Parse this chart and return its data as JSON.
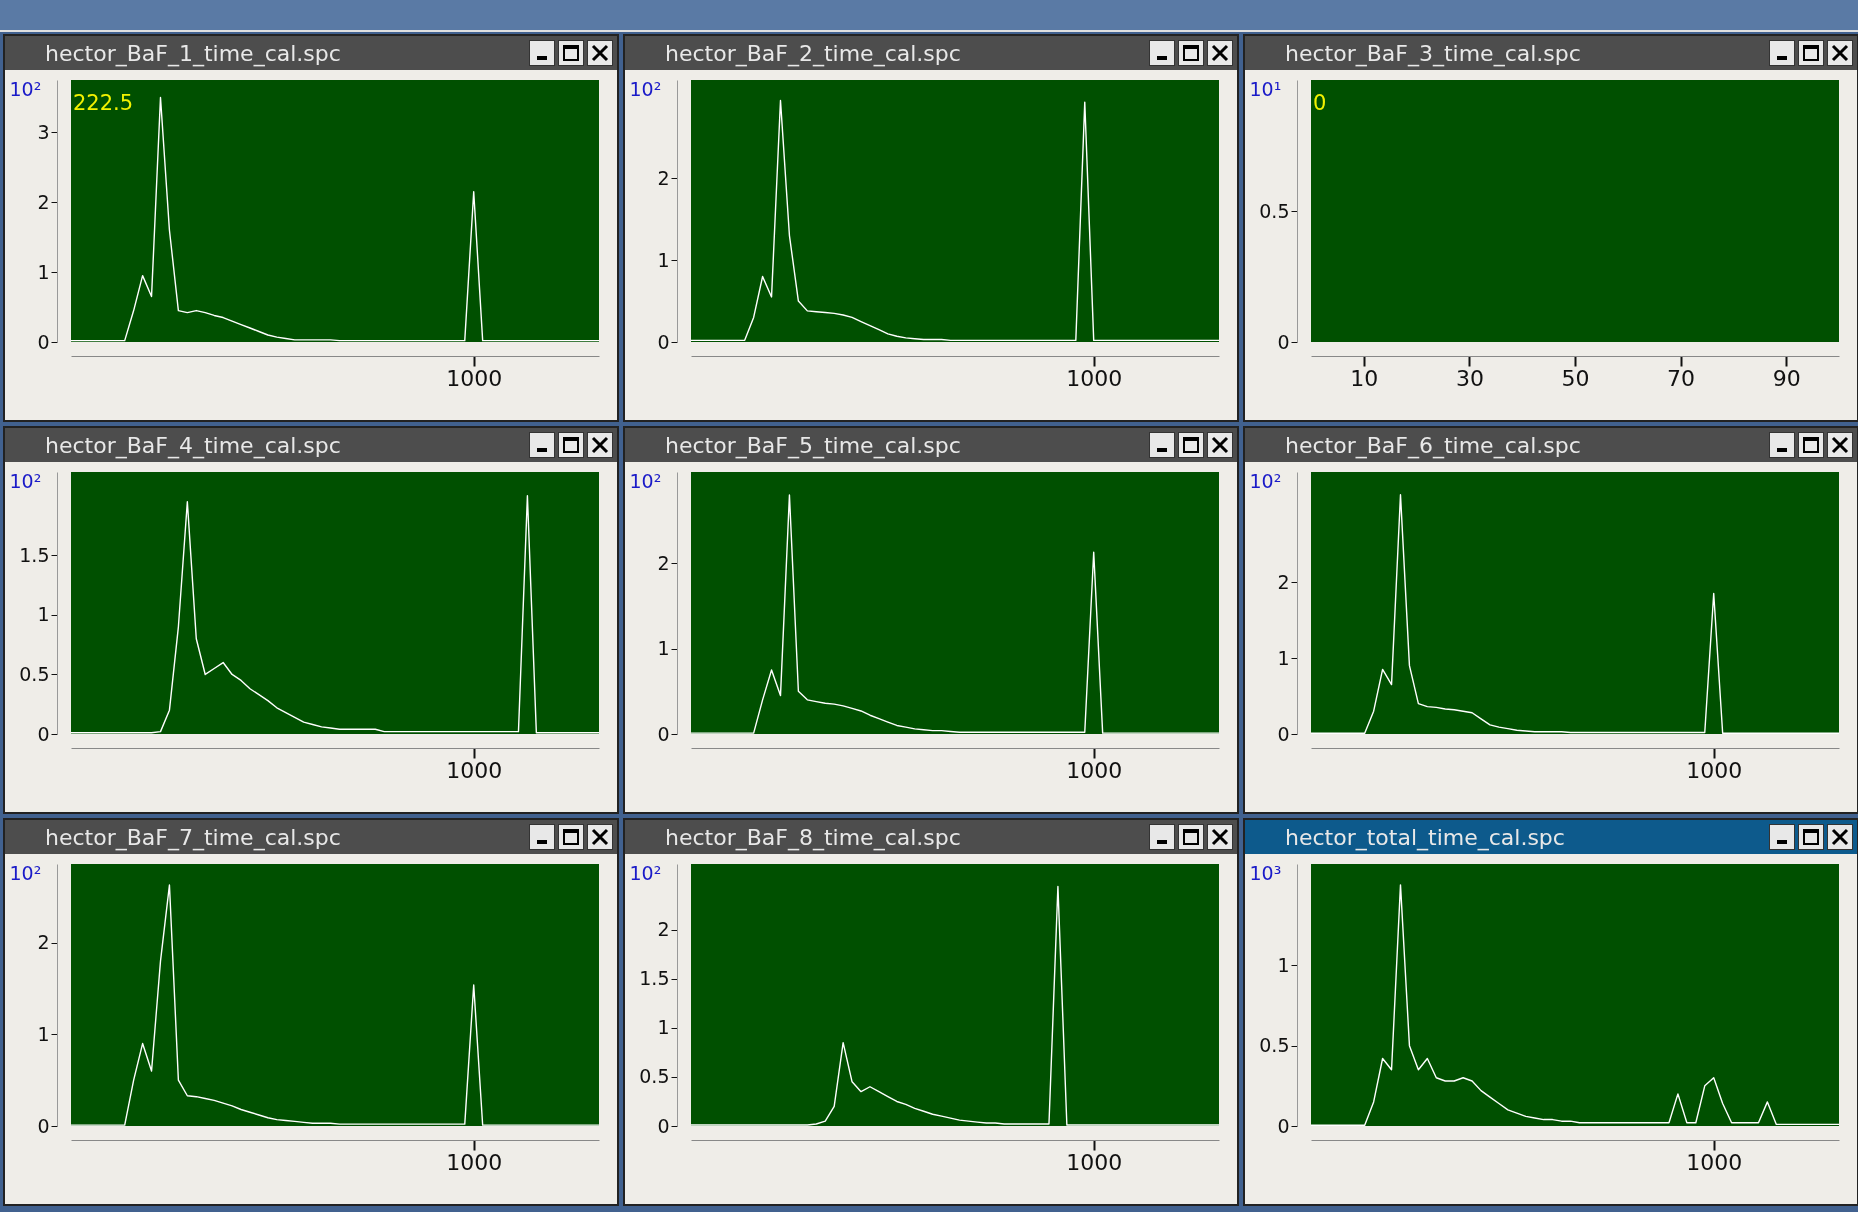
{
  "chart_data": [
    {
      "type": "line",
      "title": "hector_BaF_1_time_cal.spc",
      "ylabel": "10²",
      "annotations": [
        "222.5"
      ],
      "ylim": [
        0,
        3.75
      ],
      "yticks": [
        0,
        1,
        2,
        3
      ],
      "categories": [
        null,
        null,
        null,
        null,
        null,
        null,
        null,
        null,
        null,
        null,
        null,
        null,
        null,
        null,
        null,
        null,
        null,
        null,
        null,
        null,
        null,
        null,
        null,
        null,
        null,
        null,
        null,
        null,
        null,
        null,
        null,
        null,
        null,
        null,
        null,
        null,
        null,
        null,
        null,
        null,
        null,
        null,
        null,
        null,
        null,
        "1000",
        null,
        null,
        null,
        null,
        null,
        null,
        null,
        null,
        null,
        null,
        null,
        null,
        null,
        null
      ],
      "series": [
        {
          "color": "#ffffff",
          "values": [
            0.02,
            0.02,
            0.02,
            0.02,
            0.02,
            0.02,
            0.02,
            0.45,
            0.95,
            0.65,
            3.5,
            1.6,
            0.45,
            0.42,
            0.45,
            0.42,
            0.38,
            0.35,
            0.3,
            0.25,
            0.2,
            0.15,
            0.1,
            0.07,
            0.05,
            0.03,
            0.03,
            0.03,
            0.03,
            0.03,
            0.02,
            0.02,
            0.02,
            0.02,
            0.02,
            0.02,
            0.02,
            0.02,
            0.02,
            0.02,
            0.02,
            0.02,
            0.02,
            0.02,
            0.02,
            2.15,
            0.02,
            0.02,
            0.02,
            0.02,
            0.02,
            0.02,
            0.02,
            0.02,
            0.02,
            0.02,
            0.02,
            0.02,
            0.02,
            0.02
          ]
        }
      ]
    },
    {
      "type": "line",
      "title": "hector_BaF_2_time_cal.spc",
      "ylabel": "10²",
      "ylim": [
        0,
        3.2
      ],
      "yticks": [
        0,
        1,
        2
      ],
      "categories": [
        null,
        null,
        null,
        null,
        null,
        null,
        null,
        null,
        null,
        null,
        null,
        null,
        null,
        null,
        null,
        null,
        null,
        null,
        null,
        null,
        null,
        null,
        null,
        null,
        null,
        null,
        null,
        null,
        null,
        null,
        null,
        null,
        null,
        null,
        null,
        null,
        null,
        null,
        null,
        null,
        null,
        null,
        null,
        null,
        null,
        "1000",
        null,
        null,
        null,
        null,
        null,
        null,
        null,
        null,
        null,
        null,
        null,
        null,
        null,
        null
      ],
      "series": [
        {
          "color": "#ffffff",
          "values": [
            0.02,
            0.02,
            0.02,
            0.02,
            0.02,
            0.02,
            0.02,
            0.3,
            0.8,
            0.55,
            2.95,
            1.3,
            0.5,
            0.38,
            0.37,
            0.36,
            0.35,
            0.33,
            0.3,
            0.25,
            0.2,
            0.15,
            0.1,
            0.07,
            0.05,
            0.04,
            0.03,
            0.03,
            0.03,
            0.02,
            0.02,
            0.02,
            0.02,
            0.02,
            0.02,
            0.02,
            0.02,
            0.02,
            0.02,
            0.02,
            0.02,
            0.02,
            0.02,
            0.02,
            2.93,
            0.02,
            0.02,
            0.02,
            0.02,
            0.02,
            0.02,
            0.02,
            0.02,
            0.02,
            0.02,
            0.02,
            0.02,
            0.02,
            0.02,
            0.02
          ]
        }
      ]
    },
    {
      "type": "line",
      "title": "hector_BaF_3_time_cal.spc",
      "ylabel": "10¹",
      "annotations": [
        "0"
      ],
      "xlim": [
        0,
        100
      ],
      "xticks": [
        10,
        30,
        50,
        70,
        90
      ],
      "ylim": [
        0,
        1
      ],
      "yticks": [
        0,
        0.5
      ]
    },
    {
      "type": "line",
      "title": "hector_BaF_4_time_cal.spc",
      "ylabel": "10²",
      "ylim": [
        0,
        2.2
      ],
      "yticks": [
        0,
        0.5,
        1,
        1.5
      ],
      "categories": [
        null,
        null,
        null,
        null,
        null,
        null,
        null,
        null,
        null,
        null,
        null,
        null,
        null,
        null,
        null,
        null,
        null,
        null,
        null,
        null,
        null,
        null,
        null,
        null,
        null,
        null,
        null,
        null,
        null,
        null,
        null,
        null,
        null,
        null,
        null,
        null,
        null,
        null,
        null,
        null,
        null,
        null,
        null,
        null,
        null,
        "1000",
        null,
        null,
        null,
        null,
        null,
        null,
        null,
        null,
        null,
        null,
        null,
        null,
        null,
        null
      ],
      "series": [
        {
          "color": "#ffffff",
          "values": [
            0.01,
            0.01,
            0.01,
            0.01,
            0.01,
            0.01,
            0.01,
            0.01,
            0.01,
            0.01,
            0.02,
            0.2,
            0.9,
            1.95,
            0.8,
            0.5,
            0.55,
            0.6,
            0.5,
            0.45,
            0.38,
            0.33,
            0.28,
            0.22,
            0.18,
            0.14,
            0.1,
            0.08,
            0.06,
            0.05,
            0.04,
            0.04,
            0.04,
            0.04,
            0.04,
            0.02,
            0.02,
            0.02,
            0.02,
            0.02,
            0.02,
            0.02,
            0.02,
            0.02,
            0.02,
            0.02,
            0.02,
            0.02,
            0.02,
            0.02,
            0.02,
            2.0,
            0.01,
            0.01,
            0.01,
            0.01,
            0.01,
            0.01,
            0.01,
            0.01
          ]
        }
      ]
    },
    {
      "type": "line",
      "title": "hector_BaF_5_time_cal.spc",
      "ylabel": "10²",
      "ylim": [
        0,
        3.07
      ],
      "yticks": [
        0,
        1,
        2
      ],
      "categories": [
        null,
        null,
        null,
        null,
        null,
        null,
        null,
        null,
        null,
        null,
        null,
        null,
        null,
        null,
        null,
        null,
        null,
        null,
        null,
        null,
        null,
        null,
        null,
        null,
        null,
        null,
        null,
        null,
        null,
        null,
        null,
        null,
        null,
        null,
        null,
        null,
        null,
        null,
        null,
        null,
        null,
        null,
        null,
        null,
        null,
        "1000",
        null,
        null,
        null,
        null,
        null,
        null,
        null,
        null,
        null,
        null,
        null,
        null,
        null,
        null
      ],
      "series": [
        {
          "color": "#ffffff",
          "values": [
            0.01,
            0.01,
            0.01,
            0.01,
            0.01,
            0.01,
            0.01,
            0.01,
            0.4,
            0.75,
            0.45,
            2.8,
            0.5,
            0.4,
            0.38,
            0.36,
            0.35,
            0.33,
            0.3,
            0.27,
            0.22,
            0.18,
            0.14,
            0.1,
            0.08,
            0.06,
            0.05,
            0.04,
            0.04,
            0.03,
            0.02,
            0.02,
            0.02,
            0.02,
            0.02,
            0.02,
            0.02,
            0.02,
            0.02,
            0.02,
            0.02,
            0.02,
            0.02,
            0.02,
            0.02,
            2.13,
            0.01,
            0.01,
            0.01,
            0.01,
            0.01,
            0.01,
            0.01,
            0.01,
            0.01,
            0.01,
            0.01,
            0.01,
            0.01,
            0.01
          ]
        }
      ]
    },
    {
      "type": "line",
      "title": "hector_BaF_6_time_cal.spc",
      "ylabel": "10²",
      "ylim": [
        0,
        3.45
      ],
      "yticks": [
        0,
        1,
        2
      ],
      "categories": [
        null,
        null,
        null,
        null,
        null,
        null,
        null,
        null,
        null,
        null,
        null,
        null,
        null,
        null,
        null,
        null,
        null,
        null,
        null,
        null,
        null,
        null,
        null,
        null,
        null,
        null,
        null,
        null,
        null,
        null,
        null,
        null,
        null,
        null,
        null,
        null,
        null,
        null,
        null,
        null,
        null,
        null,
        null,
        null,
        null,
        "1000",
        null,
        null,
        null,
        null,
        null,
        null,
        null,
        null,
        null,
        null,
        null,
        null,
        null,
        null
      ],
      "series": [
        {
          "color": "#ffffff",
          "values": [
            0.01,
            0.01,
            0.01,
            0.01,
            0.01,
            0.01,
            0.01,
            0.3,
            0.85,
            0.65,
            3.15,
            0.9,
            0.4,
            0.36,
            0.35,
            0.33,
            0.32,
            0.3,
            0.28,
            0.2,
            0.12,
            0.09,
            0.07,
            0.05,
            0.04,
            0.03,
            0.03,
            0.03,
            0.03,
            0.02,
            0.02,
            0.02,
            0.02,
            0.02,
            0.02,
            0.02,
            0.02,
            0.02,
            0.02,
            0.02,
            0.02,
            0.02,
            0.02,
            0.02,
            0.02,
            1.85,
            0.01,
            0.01,
            0.01,
            0.01,
            0.01,
            0.01,
            0.01,
            0.01,
            0.01,
            0.01,
            0.01,
            0.01,
            0.01,
            0.01
          ]
        }
      ]
    },
    {
      "type": "line",
      "title": "hector_BaF_7_time_cal.spc",
      "ylabel": "10²",
      "ylim": [
        0,
        2.86
      ],
      "yticks": [
        0,
        1,
        2
      ],
      "categories": [
        null,
        null,
        null,
        null,
        null,
        null,
        null,
        null,
        null,
        null,
        null,
        null,
        null,
        null,
        null,
        null,
        null,
        null,
        null,
        null,
        null,
        null,
        null,
        null,
        null,
        null,
        null,
        null,
        null,
        null,
        null,
        null,
        null,
        null,
        null,
        null,
        null,
        null,
        null,
        null,
        null,
        null,
        null,
        null,
        null,
        "1000",
        null,
        null,
        null,
        null,
        null,
        null,
        null,
        null,
        null,
        null,
        null,
        null,
        null,
        null
      ],
      "series": [
        {
          "color": "#ffffff",
          "values": [
            0.01,
            0.01,
            0.01,
            0.01,
            0.01,
            0.01,
            0.01,
            0.5,
            0.9,
            0.6,
            1.8,
            2.63,
            0.5,
            0.33,
            0.32,
            0.3,
            0.28,
            0.25,
            0.22,
            0.18,
            0.15,
            0.12,
            0.09,
            0.07,
            0.06,
            0.05,
            0.04,
            0.03,
            0.03,
            0.03,
            0.02,
            0.02,
            0.02,
            0.02,
            0.02,
            0.02,
            0.02,
            0.02,
            0.02,
            0.02,
            0.02,
            0.02,
            0.02,
            0.02,
            0.02,
            1.54,
            0.01,
            0.01,
            0.01,
            0.01,
            0.01,
            0.01,
            0.01,
            0.01,
            0.01,
            0.01,
            0.01,
            0.01,
            0.01,
            0.01
          ]
        }
      ]
    },
    {
      "type": "line",
      "title": "hector_BaF_8_time_cal.spc",
      "ylabel": "10²",
      "ylim": [
        0,
        2.67
      ],
      "yticks": [
        0,
        0.5,
        1,
        1.5,
        2
      ],
      "categories": [
        null,
        null,
        null,
        null,
        null,
        null,
        null,
        null,
        null,
        null,
        null,
        null,
        null,
        null,
        null,
        null,
        null,
        null,
        null,
        null,
        null,
        null,
        null,
        null,
        null,
        null,
        null,
        null,
        null,
        null,
        null,
        null,
        null,
        null,
        null,
        null,
        null,
        null,
        null,
        null,
        null,
        null,
        null,
        null,
        null,
        "1000",
        null,
        null,
        null,
        null,
        null,
        null,
        null,
        null,
        null,
        null,
        null,
        null,
        null,
        null
      ],
      "series": [
        {
          "color": "#ffffff",
          "values": [
            0.01,
            0.01,
            0.01,
            0.01,
            0.01,
            0.01,
            0.01,
            0.01,
            0.01,
            0.01,
            0.01,
            0.01,
            0.01,
            0.01,
            0.02,
            0.05,
            0.2,
            0.85,
            0.45,
            0.35,
            0.4,
            0.35,
            0.3,
            0.25,
            0.22,
            0.18,
            0.15,
            0.12,
            0.1,
            0.08,
            0.06,
            0.05,
            0.04,
            0.03,
            0.03,
            0.02,
            0.02,
            0.02,
            0.02,
            0.02,
            0.02,
            2.44,
            0.01,
            0.01,
            0.01,
            0.01,
            0.01,
            0.01,
            0.01,
            0.01,
            0.01,
            0.01,
            0.01,
            0.01,
            0.01,
            0.01,
            0.01,
            0.01,
            0.01,
            0.01
          ]
        }
      ]
    },
    {
      "type": "line",
      "title": "hector_total_time_cal.spc",
      "ylabel": "10³",
      "ylim": [
        0,
        1.63
      ],
      "yticks": [
        0,
        0.5,
        1
      ],
      "categories": [
        null,
        null,
        null,
        null,
        null,
        null,
        null,
        null,
        null,
        null,
        null,
        null,
        null,
        null,
        null,
        null,
        null,
        null,
        null,
        null,
        null,
        null,
        null,
        null,
        null,
        null,
        null,
        null,
        null,
        null,
        null,
        null,
        null,
        null,
        null,
        null,
        null,
        null,
        null,
        null,
        null,
        null,
        null,
        null,
        null,
        "1000",
        null,
        null,
        null,
        null,
        null,
        null,
        null,
        null,
        null,
        null,
        null,
        null,
        null,
        null
      ],
      "series": [
        {
          "color": "#ffffff",
          "values": [
            0.005,
            0.005,
            0.005,
            0.005,
            0.005,
            0.005,
            0.005,
            0.15,
            0.42,
            0.35,
            1.5,
            0.5,
            0.35,
            0.42,
            0.3,
            0.28,
            0.28,
            0.3,
            0.28,
            0.22,
            0.18,
            0.14,
            0.1,
            0.08,
            0.06,
            0.05,
            0.04,
            0.04,
            0.03,
            0.03,
            0.02,
            0.02,
            0.02,
            0.02,
            0.02,
            0.02,
            0.02,
            0.02,
            0.02,
            0.02,
            0.02,
            0.2,
            0.02,
            0.02,
            0.25,
            0.3,
            0.14,
            0.02,
            0.02,
            0.02,
            0.02,
            0.15,
            0.01,
            0.01,
            0.01,
            0.01,
            0.01,
            0.01,
            0.01,
            0.01
          ]
        }
      ]
    }
  ]
}
